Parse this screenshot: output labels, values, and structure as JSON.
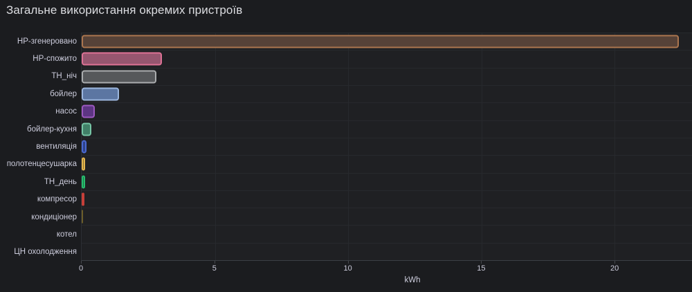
{
  "panel": {
    "title": "Загальне використання окремих пристроїв"
  },
  "chart_data": {
    "type": "bar",
    "orientation": "horizontal",
    "title": "Загальне використання окремих пристроїв",
    "categories": [
      "НР-згенеровано",
      "НР-спожито",
      "ТН_ніч",
      "бойлер",
      "насос",
      "бойлер-кухня",
      "вентиляція",
      "полотенцесушарка",
      "ТН_день",
      "компресор",
      "кондиціонер",
      "котел",
      "ЦН охолодження"
    ],
    "values": [
      22.4,
      3.0,
      2.8,
      1.4,
      0.5,
      0.36,
      0.18,
      0.14,
      0.13,
      0.09,
      0.02,
      0,
      0
    ],
    "bar_border_colors": [
      "#AC764F",
      "#DE7295",
      "#ABADAF",
      "#9CB6DE",
      "#9D59C0",
      "#77C6A6",
      "#4A6AD2",
      "#E3B54F",
      "#28BC6E",
      "#C73F39",
      "#8A7A2E",
      null,
      null
    ],
    "bar_fill_colors": [
      "#564238",
      "#96566F",
      "#56585B",
      "#5C76A2",
      "#5D3583",
      "#418068",
      "#2F4288",
      "#8F7430",
      "#1B7846",
      "#802D29",
      "#6B5D2A",
      null,
      null
    ],
    "xlabel": "kWh",
    "xlim": [
      0,
      22.9
    ],
    "xticks": [
      0,
      5,
      10,
      15,
      20
    ],
    "grid": true,
    "legend": "none"
  },
  "colors": {
    "panel_background": "#1b1c1f",
    "plot_background": "#1f2023",
    "grid": "#27292d",
    "axis_line": "#3c4046",
    "tick_mark": "#46484d",
    "text": "#ccccdc",
    "title_text": "#dcdde1"
  }
}
